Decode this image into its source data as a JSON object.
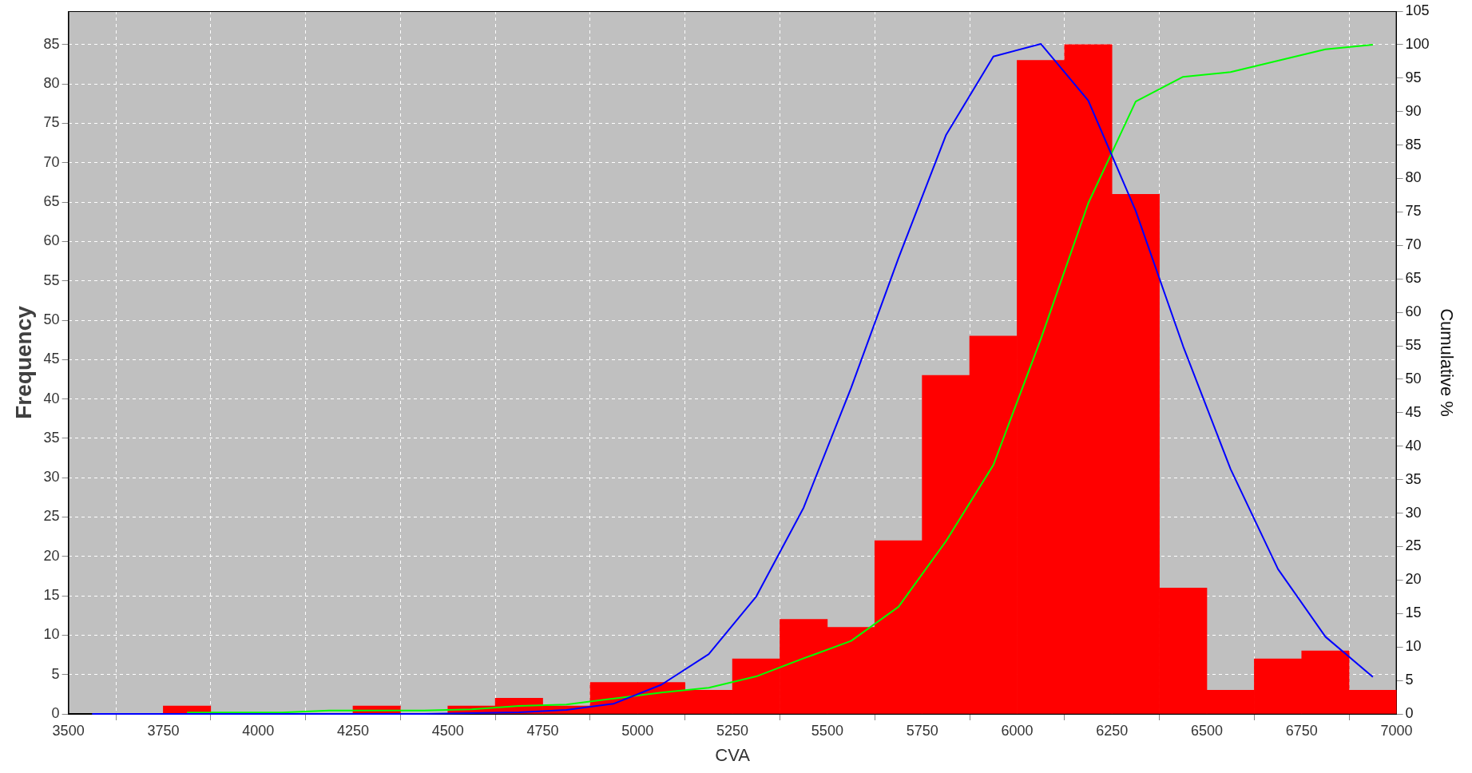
{
  "chart_data": {
    "type": "histogram",
    "xlabel": "CVA",
    "ylabel": "Frequency",
    "y2label": "Cumulative %",
    "color": "#ff0000",
    "bins": [
      3750,
      3875,
      4000,
      4125,
      4250,
      4375,
      4500,
      4625,
      4750,
      4875,
      5000,
      5125,
      5250,
      5375,
      5500,
      5625,
      5750,
      5875,
      6000,
      6125,
      6250,
      6375,
      6500,
      6625,
      6750,
      6875,
      7000
    ],
    "values": [
      1,
      0,
      0,
      0,
      1,
      0,
      1,
      2,
      1,
      4,
      4,
      3,
      7,
      12,
      11,
      22,
      43,
      48,
      83,
      85,
      66,
      16,
      3,
      7,
      8,
      3
    ],
    "series": [
      {
        "type": "line",
        "color": "#0000ff",
        "x": [
          3562.5,
          3687.5,
          3812.5,
          3937.5,
          4062.5,
          4187.5,
          4312.5,
          4437.5,
          4562.5,
          4687.5,
          4812.5,
          4937.5,
          5062.5,
          5187.5,
          5312.5,
          5437.5,
          5562.5,
          5687.5,
          5812.5,
          5937.5,
          6062.5,
          6187.5,
          6312.5,
          6437.5,
          6562.5,
          6687.5,
          6812.5,
          6937.5
        ],
        "values": [
          0,
          0,
          0,
          0,
          0,
          0,
          0,
          0,
          0.1,
          0.2,
          0.5,
          1.3,
          3.7,
          7.6,
          14.9,
          26.2,
          41.4,
          57.9,
          73.5,
          83.5,
          85.1,
          77.9,
          63.9,
          46.7,
          31.1,
          18.4,
          9.8,
          4.7
        ]
      },
      {
        "type": "line",
        "axis": "y2",
        "color": "#00ff00",
        "x": [
          3812.5,
          3937.5,
          4062.5,
          4187.5,
          4312.5,
          4437.5,
          4562.5,
          4687.5,
          4812.5,
          4937.5,
          5062.5,
          5187.5,
          5312.5,
          5437.5,
          5562.5,
          5687.5,
          5812.5,
          5937.5,
          6062.5,
          6187.5,
          6312.5,
          6437.5,
          6562.5,
          6687.5,
          6812.5,
          6937.5
        ],
        "values": [
          0.2,
          0.2,
          0.2,
          0.5,
          0.5,
          0.5,
          0.7,
          1.2,
          1.4,
          2.3,
          3.2,
          3.9,
          5.6,
          8.3,
          10.9,
          16.0,
          25.8,
          37.2,
          56.0,
          76.3,
          91.5,
          95.2,
          95.9,
          97.6,
          99.3,
          100
        ]
      }
    ],
    "xlim": [
      3500,
      7000
    ],
    "xticks": [
      3500,
      3750,
      4000,
      4250,
      4500,
      4750,
      5000,
      5250,
      5500,
      5750,
      6000,
      6250,
      6500,
      6750,
      7000
    ],
    "ylim": [
      0,
      89.25
    ],
    "yticks": [
      0,
      5,
      10,
      15,
      20,
      25,
      30,
      35,
      40,
      45,
      50,
      55,
      60,
      65,
      70,
      75,
      80,
      85
    ],
    "y2lim": [
      0,
      105
    ],
    "y2ticks": [
      0,
      5,
      10,
      15,
      20,
      25,
      30,
      35,
      40,
      45,
      50,
      55,
      60,
      65,
      70,
      75,
      80,
      85,
      90,
      95,
      100,
      105
    ],
    "grid": true,
    "legend": false
  }
}
